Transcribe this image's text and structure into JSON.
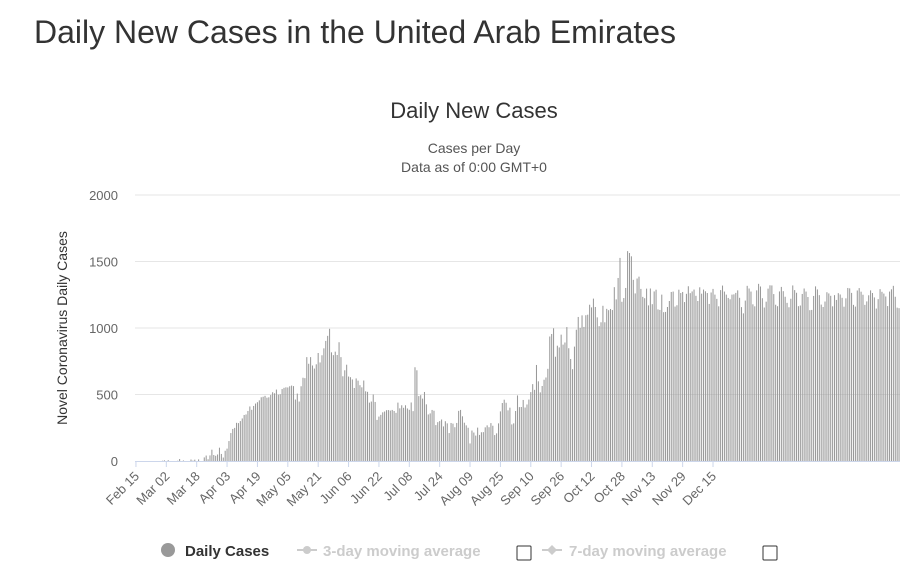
{
  "page": {
    "title": "Daily New Cases in the United Arab Emirates"
  },
  "legend": [
    {
      "label": "Daily Cases",
      "active": true,
      "color": "#999999"
    },
    {
      "label": "3-day moving average",
      "active": false,
      "color": "#cccccc"
    },
    {
      "label": "7-day moving average",
      "active": false,
      "color": "#cccccc"
    }
  ],
  "colors": {
    "bar": "#999999",
    "grid": "#e6e6e6",
    "axis": "#ccd6eb",
    "inactive": "#cccccc"
  },
  "chart_data": {
    "type": "bar",
    "title": "Daily New Cases",
    "subtitle_lines": [
      "Cases per Day",
      "Data as of 0:00 GMT+0"
    ],
    "ylabel": "Novel Coronavirus Daily Cases",
    "xlabel": "",
    "ylim": [
      0,
      2000
    ],
    "yticks": [
      0,
      500,
      1000,
      1500,
      2000
    ],
    "grid": true,
    "legend_position": "bottom-center",
    "x_start": "2020-02-15",
    "x_tick_labels": [
      "Feb 15",
      "Mar 02",
      "Mar 18",
      "Apr 03",
      "Apr 19",
      "May 05",
      "May 21",
      "Jun 06",
      "Jun 22",
      "Jul 08",
      "Jul 24",
      "Aug 09",
      "Aug 25",
      "Sep 10",
      "Sep 26",
      "Oct 12",
      "Oct 28",
      "Nov 13",
      "Nov 29",
      "Dec 15"
    ],
    "x_tick_step_days": 16,
    "series": [
      {
        "name": "Daily Cases",
        "values": [
          0,
          0,
          0,
          0,
          0,
          0,
          0,
          0,
          0,
          0,
          0,
          0,
          0,
          0,
          2,
          5,
          0,
          6,
          0,
          0,
          0,
          0,
          2,
          15,
          0,
          4,
          0,
          0,
          0,
          11,
          3,
          10,
          0,
          12,
          0,
          0,
          27,
          41,
          13,
          42,
          85,
          45,
          39,
          49,
          100,
          53,
          26,
          77,
          93,
          150,
          210,
          241,
          249,
          287,
          285,
          300,
          320,
          346,
          350,
          376,
          410,
          385,
          414,
          432,
          442,
          456,
          479,
          483,
          490,
          476,
          479,
          496,
          517,
          509,
          537,
          499,
          502,
          541,
          550,
          554,
          553,
          562,
          567,
          563,
          462,
          507,
          447,
          562,
          626,
          623,
          781,
          731,
          781,
          718,
          695,
          727,
          812,
          741,
          795,
          847,
          903,
          941,
          994,
          817,
          796,
          822,
          797,
          893,
          781,
          637,
          682,
          724,
          635,
          630,
          613,
          549,
          621,
          604,
          570,
          554,
          605,
          524,
          520,
          439,
          447,
          500,
          444,
          309,
          334,
          347,
          366,
          372,
          382,
          383,
          379,
          384,
          376,
          362,
          439,
          396,
          419,
          400,
          419,
          395,
          385,
          440,
          375,
          705,
          682,
          488,
          495,
          469,
          519,
          426,
          350,
          358,
          384,
          378,
          270,
          292,
          300,
          312,
          260,
          299,
          283,
          210,
          286,
          281,
          254,
          286,
          377,
          384,
          336,
          288,
          268,
          250,
          132,
          229,
          214,
          191,
          251,
          196,
          216,
          217,
          253,
          268,
          254,
          285,
          265,
          195,
          208,
          283,
          373,
          436,
          461,
          438,
          381,
          401,
          275,
          283,
          376,
          493,
          405,
          406,
          459,
          402,
          425,
          462,
          518,
          578,
          535,
          722,
          599,
          516,
          564,
          611,
          628,
          693,
          936,
          955,
          998,
          784,
          867,
          854,
          950,
          875,
          891,
          1007,
          848,
          767,
          690,
          860,
          987,
          1083,
          1001,
          1095,
          1008,
          1096,
          1100,
          1175,
          1155,
          1221,
          1158,
          1080,
          1014,
          1043,
          1167,
          1043,
          1144,
          1134,
          1143,
          1135,
          1307,
          1215,
          1376,
          1527,
          1197,
          1225,
          1301,
          1578,
          1564,
          1539,
          1362,
          1260,
          1372,
          1386,
          1294,
          1234,
          1224,
          1296,
          1170,
          1297,
          1179,
          1275,
          1288,
          1140,
          1136,
          1251,
          1119,
          1121,
          1158,
          1203,
          1271,
          1274,
          1161,
          1171,
          1288,
          1263,
          1271,
          1195,
          1257,
          1314,
          1262,
          1275,
          1289,
          1242,
          1203,
          1306,
          1258,
          1289,
          1276,
          1263,
          1181,
          1267,
          1294,
          1251,
          1219,
          1163,
          1285,
          1319,
          1274,
          1251,
          1226,
          1216,
          1251,
          1253,
          1264,
          1283,
          1227,
          1157,
          1110,
          1206,
          1317,
          1297,
          1274,
          1178,
          1163,
          1283,
          1332,
          1312,
          1224,
          1154,
          1198,
          1296,
          1321,
          1320,
          1255,
          1175,
          1164,
          1275,
          1309,
          1277,
          1235,
          1189,
          1156,
          1220,
          1320,
          1285,
          1265,
          1164,
          1169,
          1256,
          1297,
          1274,
          1233,
          1134,
          1136,
          1241,
          1313,
          1290,
          1247,
          1176,
          1158,
          1199,
          1269,
          1260,
          1242,
          1163,
          1247,
          1211,
          1262,
          1252,
          1227,
          1160,
          1223,
          1301,
          1298,
          1264,
          1174,
          1161,
          1282,
          1300,
          1273,
          1250,
          1174,
          1200,
          1246,
          1283,
          1263,
          1230,
          1146,
          1217,
          1292,
          1272,
          1259,
          1237,
          1165,
          1274,
          1291,
          1317,
          1235,
          1153,
          1149
        ]
      }
    ]
  }
}
